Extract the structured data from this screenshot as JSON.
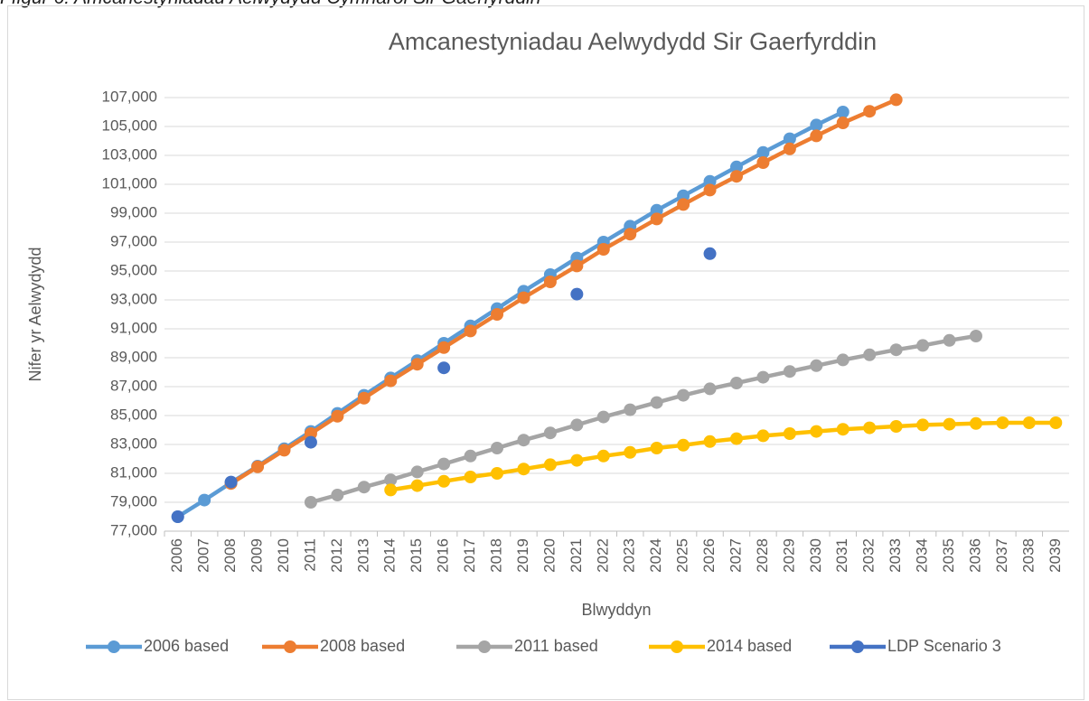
{
  "caption": "Ffigur 6: Amcanestyniadau Aelwydydd Cymharol Sir Gaerfyrddin",
  "chart_data": {
    "type": "line",
    "title": "Amcanestyniadau Aelwydydd Sir Gaerfyrddin",
    "x_label": "Blwyddyn",
    "y_label": "Nifer yr Aelwydydd",
    "categories": [
      "2006",
      "2007",
      "2008",
      "2009",
      "2010",
      "2011",
      "2012",
      "2013",
      "2014",
      "2015",
      "2016",
      "2017",
      "2018",
      "2019",
      "2020",
      "2021",
      "2022",
      "2023",
      "2024",
      "2025",
      "2026",
      "2027",
      "2028",
      "2029",
      "2030",
      "2031",
      "2032",
      "2033",
      "2034",
      "2035",
      "2036",
      "2037",
      "2038",
      "2039"
    ],
    "ylim": [
      77000,
      107000
    ],
    "yticks": [
      {
        "value": 77000,
        "label": "77,000"
      },
      {
        "value": 79000,
        "label": "79,000"
      },
      {
        "value": 81000,
        "label": "81,000"
      },
      {
        "value": 83000,
        "label": "83,000"
      },
      {
        "value": 85000,
        "label": "85,000"
      },
      {
        "value": 87000,
        "label": "87,000"
      },
      {
        "value": 89000,
        "label": "89,000"
      },
      {
        "value": 91000,
        "label": "91,000"
      },
      {
        "value": 93000,
        "label": "93,000"
      },
      {
        "value": 95000,
        "label": "95,000"
      },
      {
        "value": 97000,
        "label": "97,000"
      },
      {
        "value": 99000,
        "label": "99,000"
      },
      {
        "value": 101000,
        "label": "101,000"
      },
      {
        "value": 103000,
        "label": "103,000"
      },
      {
        "value": 105000,
        "label": "105,000"
      },
      {
        "value": 107000,
        "label": "107,000"
      }
    ],
    "grid": true,
    "legend": "bottom",
    "series": [
      {
        "name": "2006 based",
        "color": "#5B9BD5",
        "values": [
          78000,
          79150,
          80350,
          81500,
          82700,
          83900,
          85150,
          86400,
          87600,
          88800,
          90000,
          91200,
          92400,
          93600,
          94750,
          95900,
          97000,
          98100,
          99200,
          100200,
          101200,
          102200,
          103200,
          104150,
          105100,
          106000,
          null,
          null,
          null,
          null,
          null,
          null,
          null,
          null
        ]
      },
      {
        "name": "2008 based",
        "color": "#ED7D31",
        "values": [
          null,
          null,
          80300,
          81450,
          82600,
          83750,
          84950,
          86200,
          87400,
          88550,
          89700,
          90850,
          92000,
          93150,
          94250,
          95350,
          96500,
          97550,
          98600,
          99600,
          100600,
          101550,
          102500,
          103450,
          104350,
          105250,
          106050,
          106850,
          null,
          null,
          null,
          null,
          null,
          null
        ]
      },
      {
        "name": "2011 based",
        "color": "#A5A5A5",
        "values": [
          null,
          null,
          null,
          null,
          null,
          79000,
          79500,
          80050,
          80550,
          81100,
          81650,
          82200,
          82750,
          83300,
          83800,
          84350,
          84900,
          85400,
          85900,
          86400,
          86850,
          87250,
          87650,
          88050,
          88450,
          88850,
          89200,
          89550,
          89850,
          90200,
          90500,
          null,
          null,
          null
        ]
      },
      {
        "name": "2014 based",
        "color": "#FFC000",
        "values": [
          null,
          null,
          null,
          null,
          null,
          null,
          null,
          null,
          79850,
          80150,
          80450,
          80750,
          81000,
          81300,
          81600,
          81900,
          82200,
          82450,
          82750,
          82950,
          83200,
          83400,
          83600,
          83750,
          83900,
          84050,
          84150,
          84250,
          84350,
          84400,
          84450,
          84500,
          84500,
          84500
        ]
      },
      {
        "name": "LDP Scenario 3",
        "color": "#4472C4",
        "values": [
          78000,
          null,
          80400,
          null,
          null,
          83150,
          null,
          null,
          null,
          null,
          88300,
          null,
          null,
          null,
          null,
          93400,
          null,
          null,
          null,
          null,
          96200,
          null,
          null,
          null,
          null,
          null,
          null,
          null,
          null,
          null,
          null,
          null,
          null,
          null
        ]
      }
    ]
  }
}
